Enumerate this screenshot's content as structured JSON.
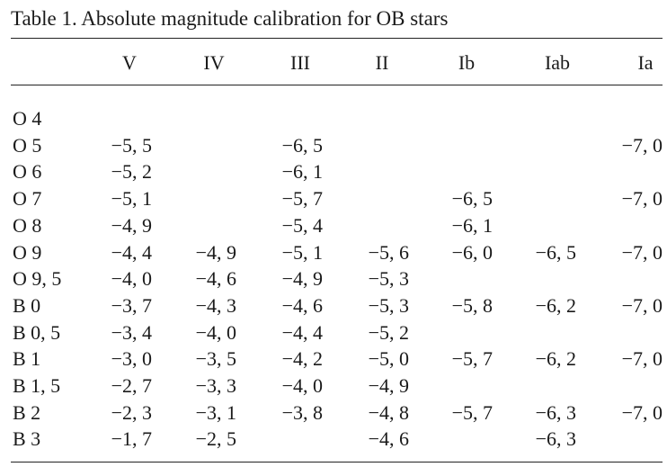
{
  "caption": "Table 1. Absolute magnitude calibration for OB stars",
  "columns": [
    "V",
    "IV",
    "III",
    "II",
    "Ib",
    "Iab",
    "Ia"
  ],
  "rows": [
    {
      "type": "O 4",
      "values": [
        "",
        "",
        "",
        "",
        "",
        "",
        ""
      ]
    },
    {
      "type": "O 5",
      "values": [
        "−5, 5",
        "",
        "−6, 5",
        "",
        "",
        "",
        "−7, 0"
      ]
    },
    {
      "type": "O 6",
      "values": [
        "−5, 2",
        "",
        "−6, 1",
        "",
        "",
        "",
        ""
      ]
    },
    {
      "type": "O 7",
      "values": [
        "−5, 1",
        "",
        "−5, 7",
        "",
        "−6, 5",
        "",
        "−7, 0"
      ]
    },
    {
      "type": "O 8",
      "values": [
        "−4, 9",
        "",
        "−5, 4",
        "",
        "−6, 1",
        "",
        ""
      ]
    },
    {
      "type": "O 9",
      "values": [
        "−4, 4",
        "−4, 9",
        "−5, 1",
        "−5, 6",
        "−6, 0",
        "−6, 5",
        "−7, 0"
      ]
    },
    {
      "type": "O 9, 5",
      "values": [
        "−4, 0",
        "−4, 6",
        "−4, 9",
        "−5, 3",
        "",
        "",
        ""
      ]
    },
    {
      "type": "B 0",
      "values": [
        "−3, 7",
        "−4, 3",
        "−4, 6",
        "−5, 3",
        "−5, 8",
        "−6, 2",
        "−7, 0"
      ]
    },
    {
      "type": "B 0, 5",
      "values": [
        "−3, 4",
        "−4, 0",
        "−4, 4",
        "−5, 2",
        "",
        "",
        ""
      ]
    },
    {
      "type": "B 1",
      "values": [
        "−3, 0",
        "−3, 5",
        "−4, 2",
        "−5, 0",
        "−5, 7",
        "−6, 2",
        "−7, 0"
      ]
    },
    {
      "type": "B 1, 5",
      "values": [
        "−2, 7",
        "−3, 3",
        "−4, 0",
        "−4, 9",
        "",
        "",
        ""
      ]
    },
    {
      "type": "B 2",
      "values": [
        "−2, 3",
        "−3, 1",
        "−3, 8",
        "−4, 8",
        "−5, 7",
        "−6, 3",
        "−7, 0"
      ]
    },
    {
      "type": "B 3",
      "values": [
        "−1, 7",
        "−2, 5",
        "",
        "−4, 6",
        "",
        "−6, 3",
        ""
      ]
    }
  ]
}
